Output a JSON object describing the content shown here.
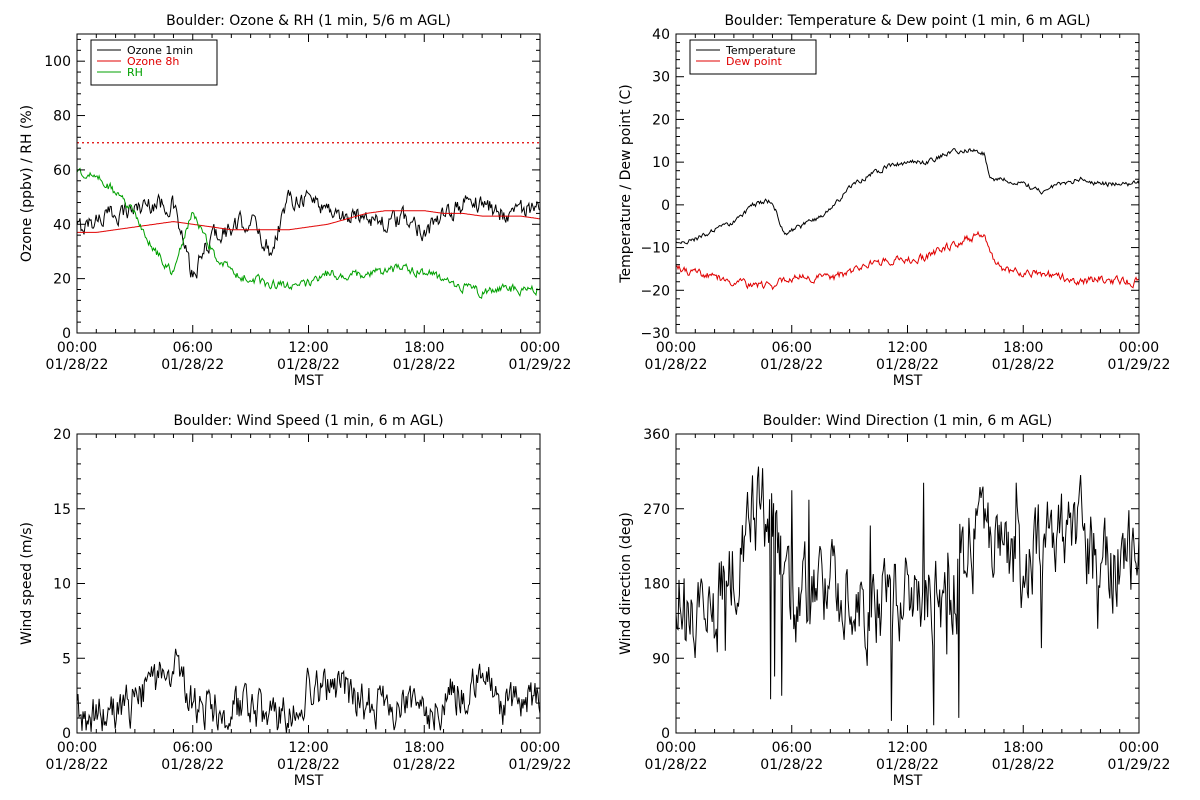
{
  "chart_data": [
    {
      "type": "line",
      "title": "Boulder: Ozone & RH (1 min, 5/6 m AGL)",
      "xlabel": "MST",
      "ylabel": "Ozone (ppbv) / RH (%)",
      "xlim": [
        "01/28/22 00:00",
        "01/29/22 00:00"
      ],
      "ylim": [
        0,
        110
      ],
      "yticks": [
        "0",
        "20",
        "40",
        "60",
        "80",
        "100"
      ],
      "xticks": [
        {
          "time": "00:00",
          "date": "01/28/22"
        },
        {
          "time": "06:00",
          "date": "01/28/22"
        },
        {
          "time": "12:00",
          "date": "01/28/22"
        },
        {
          "time": "18:00",
          "date": "01/28/22"
        },
        {
          "time": "00:00",
          "date": "01/29/22"
        }
      ],
      "legend_position": "top-left",
      "reference_line": {
        "y": 70,
        "style": "dotted",
        "color": "#e00000"
      },
      "x_hours": [
        0,
        1,
        2,
        3,
        4,
        5,
        6,
        7,
        8,
        9,
        10,
        11,
        12,
        13,
        14,
        15,
        16,
        17,
        18,
        19,
        20,
        21,
        22,
        23,
        24
      ],
      "series": [
        {
          "name": "Ozone 1min",
          "color": "#000000",
          "noise": 3,
          "values": [
            38,
            42,
            44,
            46,
            48,
            47,
            20,
            36,
            38,
            42,
            30,
            50,
            50,
            46,
            42,
            44,
            40,
            42,
            38,
            42,
            48,
            48,
            44,
            46,
            44
          ]
        },
        {
          "name": "Ozone 8h",
          "color": "#e00000",
          "noise": 0,
          "values": [
            37,
            37,
            38,
            39,
            40,
            41,
            40,
            39,
            38,
            38,
            38,
            38,
            39,
            40,
            42,
            44,
            45,
            45,
            45,
            44,
            44,
            43,
            43,
            43,
            42
          ]
        },
        {
          "name": "RH",
          "color": "#00a000",
          "noise": 1.5,
          "values": [
            60,
            58,
            52,
            44,
            30,
            22,
            45,
            30,
            22,
            20,
            18,
            17,
            18,
            22,
            21,
            22,
            23,
            24,
            22,
            20,
            17,
            15,
            16,
            16,
            16
          ]
        }
      ]
    },
    {
      "type": "line",
      "title": "Boulder: Temperature & Dew point (1 min, 6 m AGL)",
      "xlabel": "MST",
      "ylabel": "Temperature / Dew point (C)",
      "xlim": [
        "01/28/22 00:00",
        "01/29/22 00:00"
      ],
      "ylim": [
        -30,
        40
      ],
      "yticks": [
        "−30",
        "−20",
        "−10",
        "0",
        "10",
        "20",
        "30",
        "40"
      ],
      "xticks": [
        {
          "time": "00:00",
          "date": "01/28/22"
        },
        {
          "time": "06:00",
          "date": "01/28/22"
        },
        {
          "time": "12:00",
          "date": "01/28/22"
        },
        {
          "time": "18:00",
          "date": "01/28/22"
        },
        {
          "time": "00:00",
          "date": "01/29/22"
        }
      ],
      "legend_position": "top-left",
      "x_hours": [
        0,
        1,
        2,
        3,
        4,
        5,
        5.6,
        6,
        7,
        8,
        9,
        10,
        11,
        12,
        13,
        14,
        15,
        16,
        16.3,
        17,
        18,
        19,
        20,
        21,
        22,
        23,
        24
      ],
      "series": [
        {
          "name": "Temperature",
          "color": "#000000",
          "noise": 0.5,
          "values": [
            -9,
            -8,
            -6,
            -4,
            0,
            1,
            -7,
            -6,
            -4,
            -1,
            4,
            7,
            9,
            10,
            10,
            12,
            13,
            12,
            6,
            6,
            5,
            3,
            5,
            6,
            5,
            5,
            5
          ]
        },
        {
          "name": "Dew point",
          "color": "#e00000",
          "noise": 0.8,
          "values": [
            -15,
            -16,
            -17,
            -18,
            -19,
            -19,
            -17,
            -17,
            -17,
            -17,
            -16,
            -14,
            -13,
            -13,
            -12,
            -10,
            -8,
            -7,
            -12,
            -15,
            -16,
            -16,
            -17,
            -18,
            -17,
            -18,
            -18
          ]
        }
      ]
    },
    {
      "type": "line",
      "title": "Boulder: Wind Speed (1 min, 6 m AGL)",
      "xlabel": "MST",
      "ylabel": "Wind speed (m/s)",
      "xlim": [
        "01/28/22 00:00",
        "01/29/22 00:00"
      ],
      "ylim": [
        0,
        20
      ],
      "yticks": [
        "0",
        "5",
        "10",
        "15",
        "20"
      ],
      "xticks": [
        {
          "time": "00:00",
          "date": "01/28/22"
        },
        {
          "time": "06:00",
          "date": "01/28/22"
        },
        {
          "time": "12:00",
          "date": "01/28/22"
        },
        {
          "time": "18:00",
          "date": "01/28/22"
        },
        {
          "time": "00:00",
          "date": "01/29/22"
        }
      ],
      "x_hours": [
        0,
        1,
        2,
        3,
        4,
        5,
        6,
        7,
        8,
        9,
        10,
        11,
        12,
        13,
        14,
        15,
        16,
        17,
        18,
        19,
        20,
        21,
        22,
        23,
        24
      ],
      "series": [
        {
          "name": "",
          "color": "#000000",
          "noise": 1.2,
          "values": [
            1,
            1,
            1.5,
            2,
            3,
            5,
            2,
            1.5,
            1.5,
            1.5,
            1,
            1,
            3,
            3,
            2.5,
            2,
            1.5,
            1.5,
            1.5,
            2,
            3,
            4,
            2,
            1.5,
            2.5
          ]
        }
      ]
    },
    {
      "type": "line",
      "title": "Boulder: Wind Direction (1 min, 6 m AGL)",
      "xlabel": "MST",
      "ylabel": "Wind direction (deg)",
      "xlim": [
        "01/28/22 00:00",
        "01/29/22 00:00"
      ],
      "ylim": [
        0,
        360
      ],
      "yticks": [
        "0",
        "90",
        "180",
        "270",
        "360"
      ],
      "xticks": [
        {
          "time": "00:00",
          "date": "01/28/22"
        },
        {
          "time": "06:00",
          "date": "01/28/22"
        },
        {
          "time": "12:00",
          "date": "01/28/22"
        },
        {
          "time": "18:00",
          "date": "01/28/22"
        },
        {
          "time": "00:00",
          "date": "01/29/22"
        }
      ],
      "x_hours": [
        0,
        1,
        2,
        3,
        4,
        5,
        6,
        7,
        8,
        9,
        10,
        11,
        12,
        13,
        14,
        15,
        16,
        17,
        18,
        19,
        20,
        21,
        22,
        23,
        24
      ],
      "series": [
        {
          "name": "",
          "color": "#000000",
          "noise": 45,
          "values": [
            170,
            160,
            140,
            200,
            260,
            270,
            150,
            170,
            180,
            160,
            150,
            160,
            175,
            165,
            150,
            220,
            240,
            230,
            200,
            240,
            235,
            240,
            200,
            210,
            230
          ]
        }
      ]
    }
  ]
}
